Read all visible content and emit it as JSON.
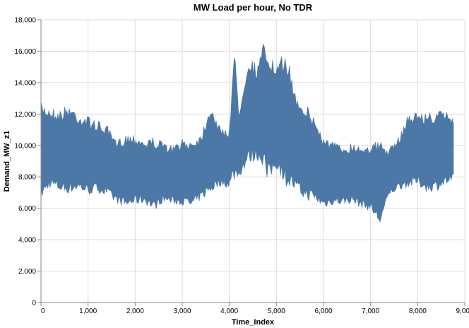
{
  "chart_data": {
    "type": "line",
    "title": "MW Load per hour, No TDR",
    "xlabel": "Time_Index",
    "ylabel": "Demand_MW_z1",
    "xlim": [
      0,
      8760
    ],
    "ylim": [
      0,
      18000
    ],
    "x_ticks": [
      0,
      1000,
      2000,
      3000,
      4000,
      5000,
      6000,
      7000,
      8000,
      9000
    ],
    "x_tick_labels": [
      "0",
      "1,000",
      "2,000",
      "3,000",
      "4,000",
      "5,000",
      "6,000",
      "7,000",
      "8,000",
      "9,000"
    ],
    "y_ticks": [
      0,
      2000,
      4000,
      6000,
      8000,
      10000,
      12000,
      14000,
      16000,
      18000
    ],
    "y_tick_labels": [
      "0",
      "2,000",
      "4,000",
      "6,000",
      "8,000",
      "10,000",
      "12,000",
      "14,000",
      "16,000",
      "18,000"
    ],
    "grid": true,
    "series": [
      {
        "color": "#4c78a8",
        "x": [
          0,
          200,
          400,
          600,
          800,
          1000,
          1200,
          1400,
          1600,
          1800,
          2000,
          2200,
          2400,
          2600,
          2800,
          3000,
          3200,
          3400,
          3600,
          3800,
          4000,
          4100,
          4200,
          4400,
          4600,
          4750,
          4800,
          5000,
          5200,
          5400,
          5600,
          5800,
          6000,
          6200,
          6400,
          6600,
          6800,
          7000,
          7200,
          7400,
          7600,
          7800,
          8000,
          8200,
          8400,
          8600,
          8760
        ],
        "max": [
          12800,
          12500,
          12300,
          12700,
          12100,
          11900,
          11600,
          11300,
          10300,
          10800,
          10800,
          10400,
          10600,
          10200,
          10000,
          10400,
          10400,
          10800,
          12800,
          11200,
          11000,
          16600,
          12300,
          15800,
          15200,
          16800,
          16300,
          15000,
          16200,
          13500,
          12800,
          11900,
          10600,
          10300,
          10000,
          10200,
          10100,
          10200,
          10300,
          9800,
          10600,
          12100,
          12200,
          12100,
          12200,
          12300,
          11900
        ],
        "min": [
          6500,
          7300,
          7000,
          6900,
          7100,
          6800,
          7000,
          6700,
          6300,
          6000,
          6200,
          6300,
          5800,
          6400,
          6200,
          6200,
          6000,
          6500,
          6900,
          7400,
          7300,
          7700,
          7900,
          8800,
          9000,
          8600,
          7500,
          8500,
          7400,
          7000,
          6500,
          6400,
          6000,
          6200,
          6200,
          6300,
          6000,
          5800,
          4900,
          6800,
          7200,
          7300,
          7400,
          7000,
          7100,
          7400,
          7600
        ]
      }
    ]
  }
}
